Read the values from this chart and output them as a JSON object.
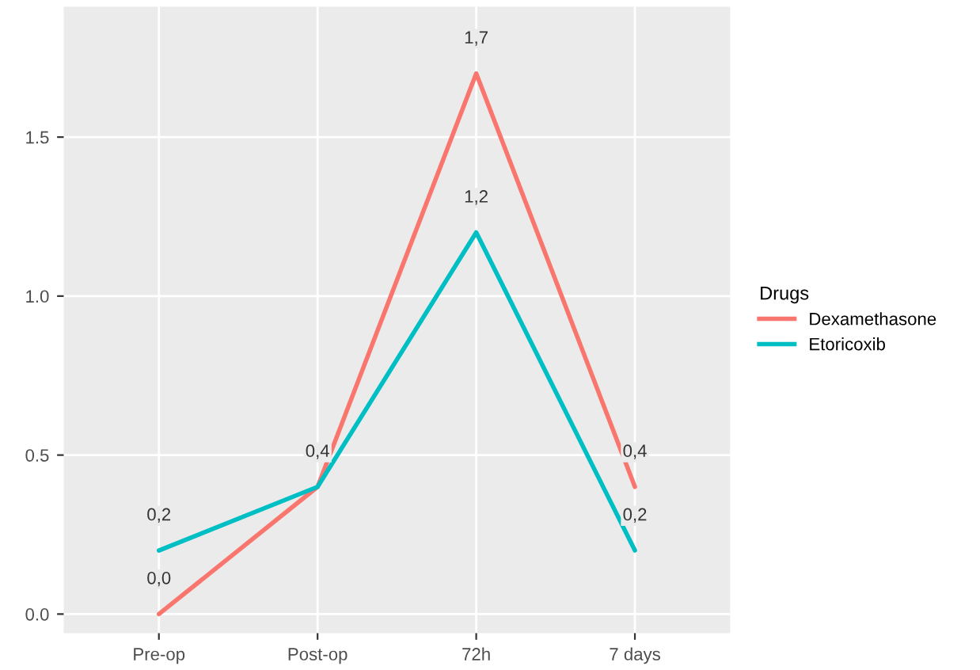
{
  "chart_data": {
    "type": "line",
    "categories": [
      "Pre-op",
      "Post-op",
      "72h",
      "7 days"
    ],
    "series": [
      {
        "name": "Dexamethasone",
        "color": "#f8766d",
        "values": [
          0.0,
          0.4,
          1.7,
          0.4
        ],
        "value_labels": [
          "0,0",
          null,
          "1,7",
          "0,4"
        ]
      },
      {
        "name": "Etoricoxib",
        "color": "#00bfc4",
        "values": [
          0.2,
          0.4,
          1.2,
          0.2
        ],
        "value_labels": [
          "0,2",
          "0,4",
          "1,2",
          "0,2"
        ]
      }
    ],
    "ylim": [
      -0.06,
      1.91
    ],
    "yticks": [
      {
        "value": 0.0,
        "label": "0.0"
      },
      {
        "value": 0.5,
        "label": "0.5"
      },
      {
        "value": 1.0,
        "label": "1.0"
      },
      {
        "value": 1.5,
        "label": "1.5"
      }
    ],
    "grid": true,
    "legend": "right",
    "legend_title": "Drugs",
    "marker": "none",
    "line_style": "solid"
  }
}
